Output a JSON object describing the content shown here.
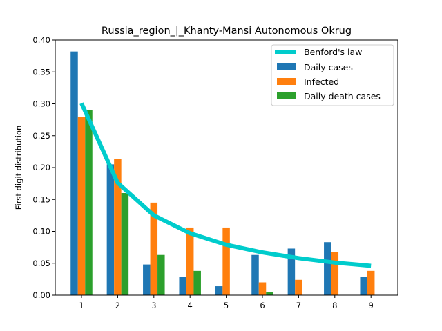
{
  "chart_data": {
    "type": "bar",
    "title": "Russia_region_|_Khanty-Mansi Autonomous Okrug",
    "xlabel": "",
    "ylabel": "First digit distribution",
    "categories": [
      "1",
      "2",
      "3",
      "4",
      "5",
      "6",
      "7",
      "8",
      "9"
    ],
    "ylim": [
      0,
      0.4
    ],
    "yticks": [
      "0.00",
      "0.05",
      "0.10",
      "0.15",
      "0.20",
      "0.25",
      "0.30",
      "0.35",
      "0.40"
    ],
    "grid": false,
    "legend_position": "top-right",
    "series": [
      {
        "name": "Daily cases",
        "color": "#1f77b4",
        "values": [
          0.382,
          0.205,
          0.048,
          0.029,
          0.014,
          0.063,
          0.073,
          0.083,
          0.029
        ]
      },
      {
        "name": "Infected",
        "color": "#ff7f0e",
        "values": [
          0.28,
          0.213,
          0.145,
          0.106,
          0.106,
          0.02,
          0.024,
          0.068,
          0.038
        ]
      },
      {
        "name": "Daily death cases",
        "color": "#2ca02c",
        "values": [
          0.29,
          0.16,
          0.063,
          0.038,
          0.0,
          0.005,
          0.0,
          0.0,
          0.0
        ]
      }
    ],
    "line": {
      "name": "Benford's law",
      "color": "#00cccc",
      "values": [
        0.301,
        0.176,
        0.125,
        0.097,
        0.079,
        0.067,
        0.058,
        0.051,
        0.046
      ]
    }
  }
}
